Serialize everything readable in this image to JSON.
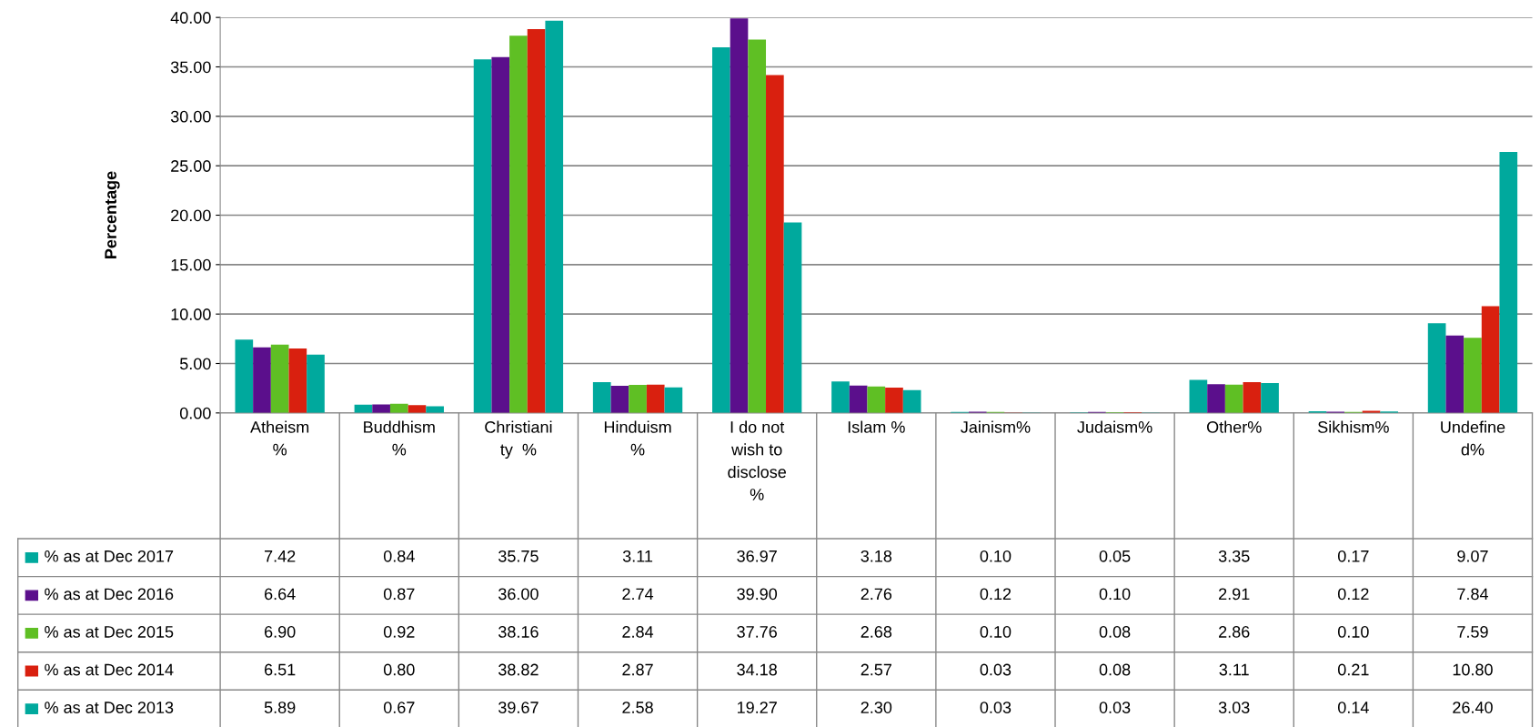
{
  "chart_data": {
    "type": "bar",
    "ylabel": "Percentage",
    "categories": [
      "Atheism\n%",
      "Buddhism\n%",
      "Christiani\nty  %",
      "Hinduism\n%",
      "I do not\nwish to\ndisclose\n%",
      "Islam %",
      "Jainism%",
      "Judaism%",
      "Other%",
      "Sikhism%",
      "Undefine\nd%"
    ],
    "series": [
      {
        "name": "% as at Dec 2017",
        "color": "#00a99d",
        "values": [
          7.42,
          0.84,
          35.75,
          3.11,
          36.97,
          3.18,
          0.1,
          0.05,
          3.35,
          0.17,
          9.07
        ],
        "value_labels": [
          "7.42",
          "0.84",
          "35.75",
          "3.11",
          "36.97",
          "3.18",
          "0.10",
          "0.05",
          "3.35",
          "0.17",
          "9.07"
        ]
      },
      {
        "name": "% as at Dec 2016",
        "color": "#5b0f8c",
        "values": [
          6.64,
          0.87,
          36.0,
          2.74,
          39.9,
          2.76,
          0.12,
          0.1,
          2.91,
          0.12,
          7.84
        ],
        "value_labels": [
          "6.64",
          "0.87",
          "36.00",
          "2.74",
          "39.90",
          "2.76",
          "0.12",
          "0.10",
          "2.91",
          "0.12",
          "7.84"
        ]
      },
      {
        "name": "% as at Dec 2015",
        "color": "#5fbf24",
        "values": [
          6.9,
          0.92,
          38.16,
          2.84,
          37.76,
          2.68,
          0.1,
          0.08,
          2.86,
          0.1,
          7.59
        ],
        "value_labels": [
          "6.90",
          "0.92",
          "38.16",
          "2.84",
          "37.76",
          "2.68",
          "0.10",
          "0.08",
          "2.86",
          "0.10",
          "7.59"
        ]
      },
      {
        "name": "% as at Dec 2014",
        "color": "#d9200f",
        "values": [
          6.51,
          0.8,
          38.82,
          2.87,
          34.18,
          2.57,
          0.03,
          0.08,
          3.11,
          0.21,
          10.8
        ],
        "value_labels": [
          "6.51",
          "0.80",
          "38.82",
          "2.87",
          "34.18",
          "2.57",
          "0.03",
          "0.08",
          "3.11",
          "0.21",
          "10.80"
        ]
      },
      {
        "name": "% as at Dec 2013",
        "color": "#00a99d",
        "values": [
          5.89,
          0.67,
          39.67,
          2.58,
          19.27,
          2.3,
          0.03,
          0.03,
          3.03,
          0.14,
          26.4
        ],
        "value_labels": [
          "5.89",
          "0.67",
          "39.67",
          "2.58",
          "19.27",
          "2.30",
          "0.03",
          "0.03",
          "3.03",
          "0.14",
          "26.40"
        ]
      }
    ],
    "ylim": [
      0,
      40
    ],
    "yticks": [
      {
        "value": 0,
        "label": "0.00"
      },
      {
        "value": 5,
        "label": "5.00"
      },
      {
        "value": 10,
        "label": "10.00"
      },
      {
        "value": 15,
        "label": "15.00"
      },
      {
        "value": 20,
        "label": "20.00"
      },
      {
        "value": 25,
        "label": "25.00"
      },
      {
        "value": 30,
        "label": "30.00"
      },
      {
        "value": 35,
        "label": "35.00"
      },
      {
        "value": 40,
        "label": "40.00"
      }
    ],
    "grid": "y",
    "legend": "bottom left"
  }
}
